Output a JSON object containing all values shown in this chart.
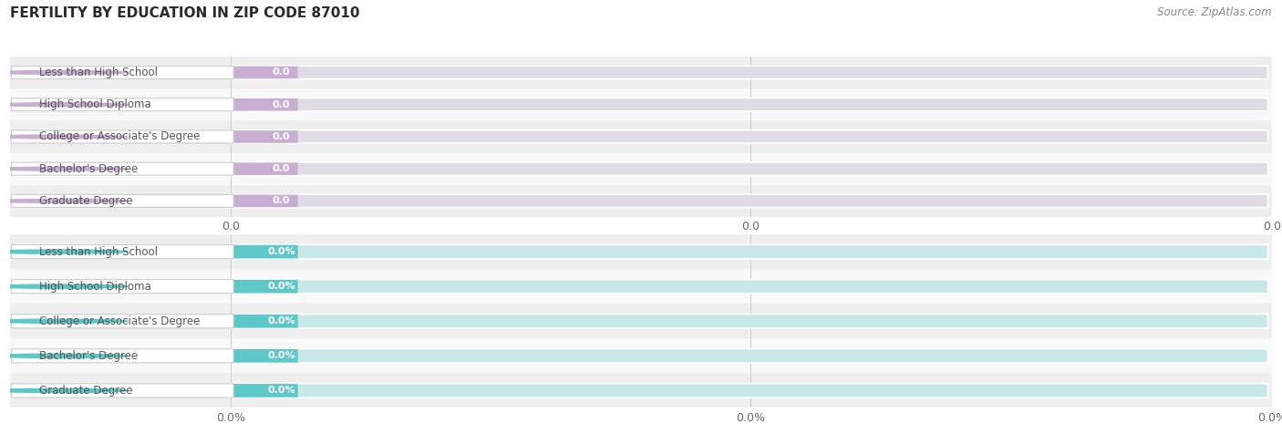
{
  "title": "FERTILITY BY EDUCATION IN ZIP CODE 87010",
  "source": "Source: ZipAtlas.com",
  "background_color": "#ffffff",
  "charts": [
    {
      "categories": [
        "Less than High School",
        "High School Diploma",
        "College or Associate's Degree",
        "Bachelor's Degree",
        "Graduate Degree"
      ],
      "values": [
        0.0,
        0.0,
        0.0,
        0.0,
        0.0
      ],
      "bar_color": "#c9aed4",
      "bar_bg_color": "#e0dce6",
      "label_color": "#555555",
      "value_color": "#ffffff",
      "val_suffix": "",
      "tick_labels": [
        "0.0",
        "0.0",
        "0.0"
      ],
      "row_bg_colors": [
        "#eeeeee",
        "#f8f8f8"
      ]
    },
    {
      "categories": [
        "Less than High School",
        "High School Diploma",
        "College or Associate's Degree",
        "Bachelor's Degree",
        "Graduate Degree"
      ],
      "values": [
        0.0,
        0.0,
        0.0,
        0.0,
        0.0
      ],
      "bar_color": "#5ec8c8",
      "bar_bg_color": "#c8e8e8",
      "label_color": "#555555",
      "value_color": "#ffffff",
      "val_suffix": "%",
      "tick_labels": [
        "0.0%",
        "0.0%",
        "0.0%"
      ],
      "row_bg_colors": [
        "#eeeeee",
        "#f8f8f8"
      ]
    }
  ],
  "title_fontsize": 11,
  "source_fontsize": 8.5,
  "label_fontsize": 8.5,
  "value_fontsize": 8,
  "tick_fontsize": 9
}
